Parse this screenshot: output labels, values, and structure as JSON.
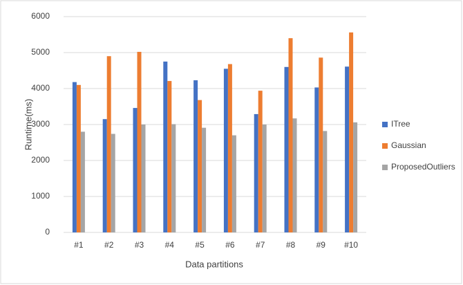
{
  "chart_data": {
    "type": "bar",
    "x_label": "Data partitions",
    "y_label": "Runtime(ms)",
    "categories": [
      "#1",
      "#2",
      "#3",
      "#4",
      "#5",
      "#6",
      "#7",
      "#8",
      "#9",
      "#10"
    ],
    "series": [
      {
        "name": "ITree",
        "color": "#4472c4",
        "values": [
          4180,
          3150,
          3460,
          4750,
          4230,
          4550,
          3290,
          4600,
          4030,
          4610
        ]
      },
      {
        "name": "Gaussian",
        "color": "#ed7d31",
        "values": [
          4100,
          4900,
          5020,
          4210,
          3680,
          4680,
          3940,
          5400,
          4860,
          5560
        ]
      },
      {
        "name": "ProposedOutliers",
        "color": "#a5a5a5",
        "values": [
          2800,
          2740,
          3000,
          3010,
          2910,
          2700,
          3000,
          3170,
          2820,
          3060
        ]
      }
    ],
    "ylim": [
      0,
      6000
    ],
    "yticks": [
      0,
      1000,
      2000,
      3000,
      4000,
      5000,
      6000
    ],
    "grid": true,
    "legend": "right"
  }
}
